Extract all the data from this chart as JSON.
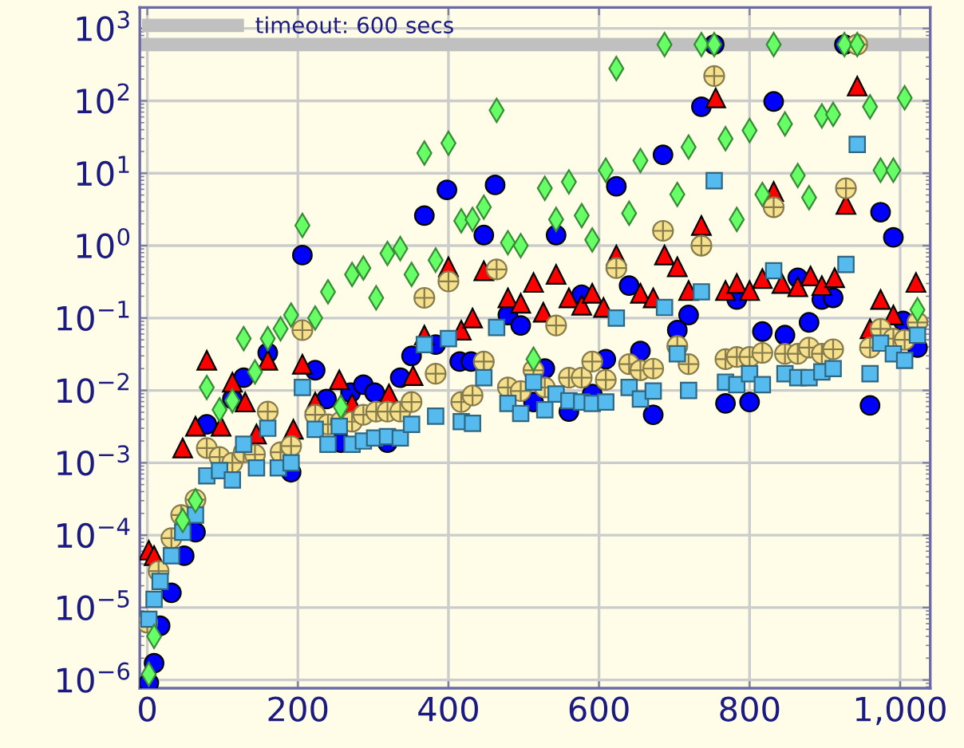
{
  "chart_data": {
    "type": "scatter",
    "log": "y",
    "grid": true,
    "legend": "top left",
    "xlim": [
      -10,
      1040
    ],
    "ylim": [
      7.7e-07,
      1950
    ],
    "xticks": [
      0,
      200,
      400,
      600,
      800,
      {
        "value": 1000,
        "label": "1,000"
      }
    ],
    "yticks": [
      {
        "value": 1e-06,
        "label": "10$^{−6}$"
      },
      {
        "value": 1e-05,
        "label": "10$^{−5}$"
      },
      {
        "value": 0.0001,
        "label": "10$^{−4}$"
      },
      {
        "value": 0.001,
        "label": "10$^{−3}$"
      },
      {
        "value": 0.01,
        "label": "10$^{−2}$"
      },
      {
        "value": 0.1,
        "label": "10$^{−1}$"
      },
      {
        "value": 1,
        "label": "10$^{0}$"
      },
      {
        "value": 10,
        "label": "10$^{1}$"
      },
      {
        "value": 100,
        "label": "10$^{2}$"
      },
      {
        "value": 1000,
        "label": "10$^{3}$"
      }
    ],
    "ref_lines": [
      {
        "axis": "y",
        "value": 600,
        "label": "timeout: 600 secs",
        "color": "#c0c0c0"
      }
    ],
    "series": [
      {
        "color": "#0000ff",
        "marker": "circle",
        "x": [
          2,
          9,
          17,
          32,
          49,
          64,
          79,
          113,
          128,
          160,
          191,
          206,
          223,
          238,
          257,
          270,
          287,
          302,
          319,
          336,
          351,
          368,
          383,
          398,
          415,
          430,
          447,
          462,
          479,
          496,
          513,
          528,
          543,
          560,
          577,
          591,
          609,
          623,
          640,
          655,
          672,
          685,
          704,
          719,
          736,
          753,
          768,
          783,
          800,
          817,
          832,
          847,
          864,
          879,
          896,
          911,
          926,
          960,
          974,
          991,
          1004,
          1023
        ],
        "values": [
          9.1e-07,
          1.7e-06,
          5.6e-06,
          1.6e-05,
          5.2e-05,
          0.00011,
          0.0034,
          0.0076,
          0.015,
          0.033,
          0.00074,
          0.74,
          0.019,
          0.0076,
          0.0019,
          0.0093,
          0.012,
          0.0093,
          0.0019,
          0.015,
          0.03,
          2.6,
          0.043,
          5.9,
          0.025,
          0.025,
          1.4,
          6.9,
          0.11,
          0.079,
          0.0069,
          0.02,
          1.4,
          0.0051,
          0.21,
          0.0089,
          0.027,
          6.6,
          0.28,
          0.035,
          0.0046,
          18,
          0.068,
          0.11,
          83,
          600,
          0.0066,
          0.18,
          0.0069,
          0.065,
          98,
          0.058,
          0.36,
          0.087,
          0.18,
          0.19,
          600,
          0.0062,
          2.9,
          1.3,
          0.091,
          0.039
        ]
      },
      {
        "color": "#ff0000",
        "marker": "triangle",
        "x": [
          2,
          9,
          47,
          64,
          79,
          98,
          113,
          130,
          145,
          160,
          194,
          206,
          223,
          255,
          272,
          321,
          353,
          368,
          400,
          417,
          432,
          447,
          479,
          496,
          513,
          526,
          543,
          560,
          577,
          591,
          606,
          623,
          655,
          672,
          687,
          704,
          719,
          736,
          755,
          768,
          783,
          800,
          817,
          832,
          843,
          864,
          881,
          896,
          913,
          928,
          943,
          960,
          974,
          991,
          1021
        ],
        "values": [
          6.2e-05,
          5.2e-05,
          0.0016,
          0.0032,
          0.026,
          0.0032,
          0.013,
          0.0069,
          0.0025,
          0.026,
          0.0029,
          0.023,
          0.0069,
          0.014,
          0.0066,
          0.0089,
          0.016,
          0.058,
          0.51,
          0.068,
          0.1,
          0.45,
          0.19,
          0.16,
          0.31,
          0.12,
          0.4,
          0.19,
          0.15,
          0.22,
          0.14,
          0.74,
          0.22,
          0.19,
          0.74,
          0.51,
          0.24,
          1.9,
          110,
          0.24,
          0.3,
          0.24,
          0.35,
          5.6,
          0.3,
          0.27,
          0.38,
          0.28,
          0.36,
          3.7,
          160,
          0.071,
          0.18,
          0.11,
          0.31
        ]
      },
      {
        "color": "#66ff66",
        "marker": "diamond",
        "type": "scatter",
        "x": [
          2,
          9,
          47,
          64,
          79,
          96,
          113,
          128,
          143,
          160,
          177,
          191,
          206,
          223,
          240,
          257,
          272,
          287,
          304,
          319,
          336,
          351,
          368,
          383,
          400,
          417,
          432,
          447,
          464,
          479,
          496,
          513,
          528,
          543,
          560,
          577,
          591,
          609,
          623,
          640,
          655,
          687,
          704,
          719,
          736,
          753,
          768,
          783,
          800,
          817,
          832,
          847,
          864,
          879,
          896,
          911,
          926,
          943,
          960,
          974,
          991,
          1006,
          1023
        ],
        "values": [
          1.2e-06,
          4e-06,
          0.00016,
          0.0003,
          0.011,
          0.0054,
          0.0072,
          0.052,
          0.018,
          0.052,
          0.071,
          0.11,
          1.9,
          0.1,
          0.23,
          0.0059,
          0.4,
          0.49,
          0.19,
          0.78,
          0.91,
          0.4,
          19,
          0.63,
          26,
          2.2,
          2.3,
          3.4,
          74,
          1.1,
          1.0,
          0.027,
          6.2,
          2.3,
          7.6,
          2.6,
          1.2,
          11,
          280,
          2.8,
          15,
          600,
          5.1,
          23,
          600,
          600,
          30,
          2.3,
          39,
          5.1,
          600,
          48,
          9.3,
          4.6,
          62,
          65,
          600,
          600,
          83,
          11,
          11,
          110,
          0.13
        ]
      },
      {
        "color": "#f5e08c",
        "marker": "cross",
        "x": [
          0,
          15,
          32,
          45,
          64,
          79,
          96,
          113,
          128,
          143,
          160,
          177,
          191,
          206,
          223,
          240,
          257,
          272,
          287,
          304,
          319,
          336,
          351,
          368,
          383,
          400,
          417,
          432,
          447,
          464,
          479,
          496,
          513,
          528,
          543,
          560,
          577,
          591,
          609,
          623,
          640,
          655,
          672,
          685,
          704,
          719,
          736,
          753,
          768,
          783,
          800,
          817,
          832,
          847,
          864,
          879,
          896,
          911,
          928,
          943,
          960,
          974,
          991,
          1006,
          1023
        ],
        "values": [
          6.2e-06,
          3.2e-05,
          9.1e-05,
          0.00019,
          0.00031,
          0.0016,
          0.0012,
          0.001,
          0.0014,
          0.0013,
          0.0051,
          0.0014,
          0.0017,
          0.068,
          0.0046,
          0.0034,
          0.0037,
          0.0037,
          0.0046,
          0.0051,
          0.0051,
          0.0051,
          0.0069,
          0.19,
          0.017,
          0.32,
          0.0069,
          0.0085,
          0.025,
          0.47,
          0.011,
          0.0098,
          0.019,
          0.011,
          0.079,
          0.015,
          0.015,
          0.025,
          0.014,
          0.49,
          0.023,
          0.019,
          0.02,
          1.6,
          0.041,
          0.023,
          1.0,
          220,
          0.027,
          0.029,
          0.029,
          0.033,
          3.4,
          0.032,
          0.032,
          0.039,
          0.032,
          0.037,
          6.2,
          600,
          0.039,
          0.071,
          0.052,
          0.05,
          0.087
        ]
      },
      {
        "color": "#55bbee",
        "marker": "square",
        "x": [
          2,
          9,
          17,
          32,
          47,
          64,
          79,
          96,
          113,
          128,
          145,
          160,
          174,
          191,
          206,
          223,
          240,
          255,
          272,
          287,
          302,
          319,
          336,
          351,
          368,
          383,
          400,
          417,
          432,
          447,
          464,
          479,
          496,
          513,
          528,
          543,
          560,
          577,
          591,
          609,
          623,
          640,
          655,
          672,
          687,
          704,
          719,
          736,
          753,
          768,
          783,
          800,
          817,
          832,
          847,
          864,
          879,
          896,
          911,
          928,
          943,
          960,
          974,
          991,
          1006,
          1023
        ],
        "values": [
          6.9e-06,
          1.3e-05,
          2.3e-05,
          5.2e-05,
          0.00011,
          0.00019,
          0.00066,
          0.00078,
          0.00058,
          0.0018,
          0.00085,
          0.003,
          0.00085,
          0.001,
          0.011,
          0.0029,
          0.0018,
          0.0032,
          0.0018,
          0.002,
          0.0022,
          0.0023,
          0.0022,
          0.0034,
          0.043,
          0.0044,
          0.052,
          0.0037,
          0.0035,
          0.015,
          0.074,
          0.0066,
          0.0048,
          0.013,
          0.0054,
          0.0089,
          0.0072,
          0.0069,
          0.0066,
          0.0069,
          0.1,
          0.011,
          0.0076,
          0.0098,
          0.14,
          0.032,
          0.01,
          0.23,
          7.9,
          0.013,
          0.012,
          0.017,
          0.012,
          0.45,
          0.017,
          0.015,
          0.015,
          0.018,
          0.02,
          0.55,
          25,
          0.017,
          0.045,
          0.032,
          0.026,
          0.058
        ]
      }
    ]
  }
}
